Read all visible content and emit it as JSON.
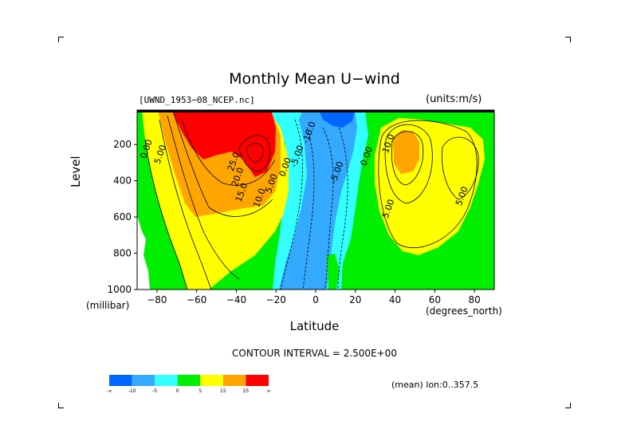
{
  "chart_data": {
    "type": "heatmap",
    "title": "Monthly Mean U−wind",
    "dataset": "[UWND_1953−08_NCEP.nc]",
    "units": "(units:m/s)",
    "xlabel": "Latitude",
    "ylabel": "Level",
    "xunit": "(degrees_north)",
    "yunit": "(millibar)",
    "xlim": [
      -90,
      90
    ],
    "ylim": [
      1000,
      10
    ],
    "x_ticks": [
      -80,
      -60,
      -40,
      -20,
      0,
      20,
      40,
      60,
      80
    ],
    "x_tick_labels": [
      "−80",
      "−60",
      "−40",
      "−20",
      "0",
      "20",
      "40",
      "60",
      "80"
    ],
    "y_ticks": [
      200,
      400,
      600,
      800,
      1000
    ],
    "y_tick_labels": [
      "200",
      "400",
      "600",
      "800",
      "1000"
    ],
    "contour_interval": "CONTOUR INTERVAL = 2.500E+00",
    "mean_note": "(mean) lon:0..357.5",
    "colorbar": {
      "labels": [
        "-∞",
        "-10",
        "-5",
        "0",
        "5",
        "15",
        "25",
        "∞"
      ],
      "colors": [
        "#0066ff",
        "#33aaff",
        "#33ffff",
        "#00ee00",
        "#ffff00",
        "#ffa500",
        "#ff0000"
      ]
    },
    "contour_labels": [
      {
        "text": "0.00",
        "lat": -84,
        "p": 230
      },
      {
        "text": "5.00",
        "lat": -77,
        "p": 260
      },
      {
        "text": "25.0",
        "lat": -40,
        "p": 300
      },
      {
        "text": "20.0",
        "lat": -38,
        "p": 385
      },
      {
        "text": "15.0",
        "lat": -36,
        "p": 470
      },
      {
        "text": "10.0",
        "lat": -27,
        "p": 500
      },
      {
        "text": "5.00",
        "lat": -21,
        "p": 420
      },
      {
        "text": "0.00",
        "lat": -14,
        "p": 330
      },
      {
        "text": "-5.00",
        "lat": -8,
        "p": 270
      },
      {
        "text": "-10.0",
        "lat": -2,
        "p": 140
      },
      {
        "text": "-5.00",
        "lat": 12,
        "p": 360
      },
      {
        "text": "0.00",
        "lat": 27,
        "p": 270
      },
      {
        "text": "10.0",
        "lat": 38,
        "p": 200
      },
      {
        "text": "5.00",
        "lat": 38,
        "p": 560
      },
      {
        "text": "5.00",
        "lat": 75,
        "p": 490
      }
    ]
  }
}
